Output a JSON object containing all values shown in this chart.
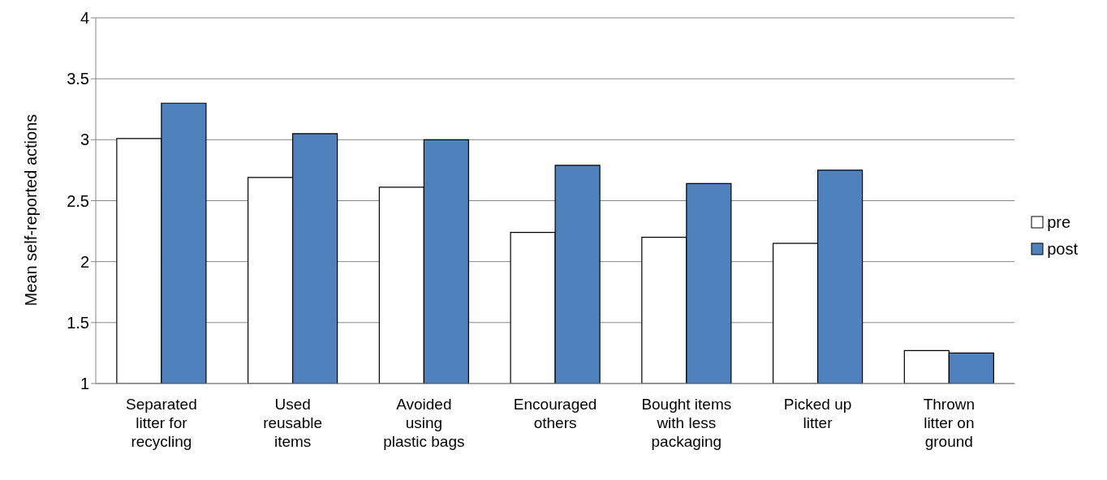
{
  "chart_data": {
    "type": "bar",
    "ylabel": "Mean self-reported actions",
    "categories": [
      "Separated litter for recycling",
      "Used reusable items",
      "Avoided using plastic bags",
      "Encouraged others",
      "Bought items with less packaging",
      "Picked up litter",
      "Thrown litter on ground"
    ],
    "series": [
      {
        "name": "pre",
        "color": "#ffffff",
        "values": [
          3.01,
          2.69,
          2.61,
          2.24,
          2.2,
          2.15,
          1.27
        ]
      },
      {
        "name": "post",
        "color": "#4f81bd",
        "values": [
          3.3,
          3.05,
          3.0,
          2.79,
          2.64,
          2.75,
          1.25
        ]
      }
    ],
    "ylim": [
      1,
      4
    ],
    "yticks": [
      1,
      1.5,
      2,
      2.5,
      3,
      3.5,
      4
    ],
    "grid": "y",
    "legend": "right"
  }
}
